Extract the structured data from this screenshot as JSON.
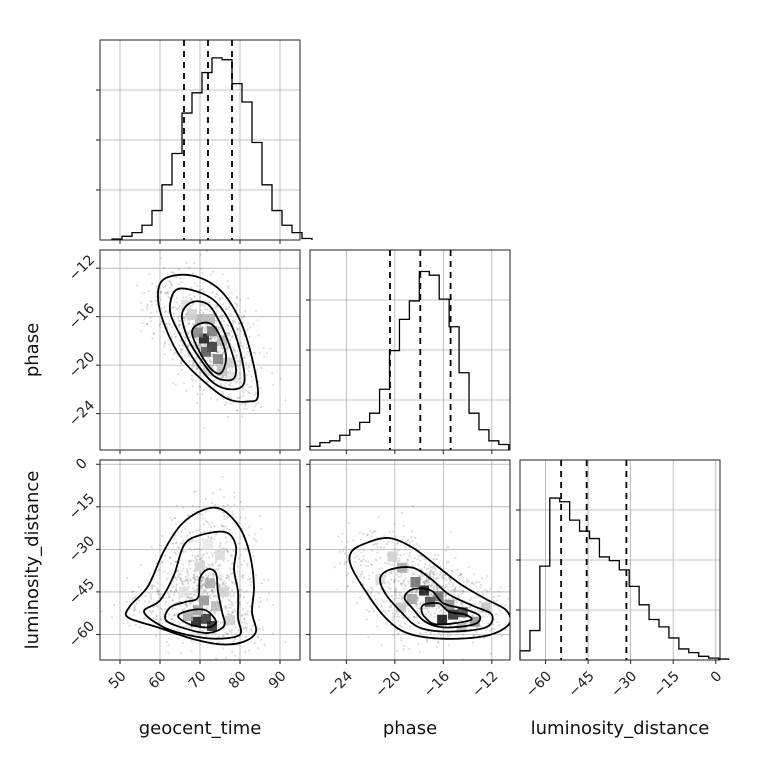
{
  "chart_data": {
    "type": "corner",
    "parameters": [
      "geocent_time",
      "phase",
      "luminosity_distance"
    ],
    "ranges": {
      "geocent_time": [
        45,
        95
      ],
      "phase": [
        -27,
        -10.5
      ],
      "luminosity_distance": [
        -69,
        1.5
      ]
    },
    "ticks": {
      "geocent_time": [
        50,
        60,
        70,
        80,
        90
      ],
      "phase": [
        -24,
        -20,
        -16,
        -12
      ],
      "luminosity_distance": [
        -60,
        -45,
        -30,
        -15,
        0
      ]
    },
    "tick_labels": {
      "geocent_time": [
        "50",
        "60",
        "70",
        "80",
        "90"
      ],
      "phase": [
        "−24",
        "−20",
        "−16",
        "−12"
      ],
      "luminosity_distance": [
        "−60",
        "−45",
        "−30",
        "−15",
        "0"
      ]
    },
    "grid": true,
    "marginals": {
      "geocent_time": {
        "bin_start": 48,
        "bin_width": 2.5,
        "counts": [
          0.005,
          0.02,
          0.04,
          0.08,
          0.16,
          0.3,
          0.47,
          0.69,
          0.8,
          0.91,
          0.99,
          0.98,
          0.85,
          0.75,
          0.53,
          0.3,
          0.16,
          0.08,
          0.04,
          0.008
        ],
        "quantiles": [
          66,
          72,
          78
        ]
      },
      "phase": {
        "bin_start": -27,
        "bin_width": 0.82,
        "counts": [
          0.02,
          0.04,
          0.05,
          0.08,
          0.11,
          0.15,
          0.2,
          0.33,
          0.54,
          0.71,
          0.81,
          0.97,
          0.95,
          0.82,
          0.67,
          0.42,
          0.2,
          0.11,
          0.05,
          0.03
        ],
        "quantiles": [
          -20.4,
          -17.9,
          -15.4
        ]
      },
      "luminosity_distance": {
        "bin_start": -69,
        "bin_width": 3.5,
        "counts": [
          0.05,
          0.16,
          0.51,
          0.88,
          0.86,
          0.76,
          0.7,
          0.66,
          0.56,
          0.54,
          0.49,
          0.4,
          0.3,
          0.22,
          0.18,
          0.12,
          0.06,
          0.04,
          0.02,
          0.01,
          0.005
        ],
        "quantiles": [
          -54.5,
          -45.5,
          -31.5
        ]
      }
    },
    "pairs": [
      {
        "x": "geocent_time",
        "y": "phase",
        "contours": [
          [
            [
              71,
              -16.5
            ],
            [
              74,
              -17
            ],
            [
              76.5,
              -19.2
            ],
            [
              75,
              -20.7
            ],
            [
              71.5,
              -19.8
            ],
            [
              68,
              -17.3
            ]
          ],
          [
            [
              68,
              -14.8
            ],
            [
              72,
              -15
            ],
            [
              75,
              -16.5
            ],
            [
              77.5,
              -18.5
            ],
            [
              79,
              -20.3
            ],
            [
              78,
              -21.2
            ],
            [
              74,
              -21
            ],
            [
              70.5,
              -19.7
            ],
            [
              67,
              -17.8
            ],
            [
              65.5,
              -15.8
            ]
          ],
          [
            [
              64,
              -13.8
            ],
            [
              69,
              -13.9
            ],
            [
              74,
              -14.8
            ],
            [
              78,
              -16.8
            ],
            [
              80.5,
              -19.5
            ],
            [
              81,
              -21.5
            ],
            [
              78,
              -22
            ],
            [
              73.5,
              -21.5
            ],
            [
              69,
              -19.8
            ],
            [
              65,
              -17.5
            ],
            [
              62.5,
              -15.5
            ]
          ],
          [
            [
              61,
              -12.9
            ],
            [
              68,
              -12.6
            ],
            [
              75,
              -13.8
            ],
            [
              80,
              -16.3
            ],
            [
              83,
              -19.4
            ],
            [
              84.5,
              -22.5
            ],
            [
              82,
              -23
            ],
            [
              77,
              -22.8
            ],
            [
              71.5,
              -21.5
            ],
            [
              65.5,
              -19.5
            ],
            [
              61.5,
              -17
            ],
            [
              59.5,
              -14.5
            ]
          ]
        ],
        "density_cells": [
          {
            "x": 71,
            "y": -17.8,
            "level": 0.95
          },
          {
            "x": 73,
            "y": -18.5,
            "level": 0.85
          },
          {
            "x": 71.5,
            "y": -18.9,
            "level": 0.7
          },
          {
            "x": 73,
            "y": -17.2,
            "level": 0.55
          },
          {
            "x": 69.5,
            "y": -17.3,
            "level": 0.5
          },
          {
            "x": 74.5,
            "y": -19.5,
            "level": 0.55
          },
          {
            "x": 70,
            "y": -16.2,
            "level": 0.3
          },
          {
            "x": 72.5,
            "y": -16.2,
            "level": 0.3
          },
          {
            "x": 75.5,
            "y": -18,
            "level": 0.3
          },
          {
            "x": 75.5,
            "y": -20.5,
            "level": 0.25
          },
          {
            "x": 68,
            "y": -15.8,
            "level": 0.2
          },
          {
            "x": 77,
            "y": -19.8,
            "level": 0.2
          },
          {
            "x": 66.5,
            "y": -15,
            "level": 0.12
          },
          {
            "x": 78,
            "y": -21,
            "level": 0.12
          },
          {
            "x": 72,
            "y": -20.5,
            "level": 0.2
          }
        ]
      },
      {
        "x": "geocent_time",
        "y": "luminosity_distance",
        "contours": [
          [
            [
              64.5,
              -53.5
            ],
            [
              67.5,
              -51.5
            ],
            [
              71.5,
              -51.5
            ],
            [
              74,
              -55.5
            ],
            [
              72,
              -57.5
            ],
            [
              67.5,
              -56.5
            ]
          ],
          [
            [
              62.5,
              -50.5
            ],
            [
              66.5,
              -48.5
            ],
            [
              69.5,
              -47
            ],
            [
              70,
              -40
            ],
            [
              72,
              -37
            ],
            [
              74,
              -38.5
            ],
            [
              74.5,
              -45
            ],
            [
              75.5,
              -52
            ],
            [
              76,
              -57
            ],
            [
              72,
              -59.5
            ],
            [
              66.5,
              -58
            ],
            [
              61.5,
              -55
            ]
          ],
          [
            [
              60,
              -48
            ],
            [
              63.5,
              -39
            ],
            [
              66,
              -28.5
            ],
            [
              70,
              -25
            ],
            [
              76.5,
              -24
            ],
            [
              79,
              -29
            ],
            [
              78.5,
              -37
            ],
            [
              79.5,
              -45
            ],
            [
              79.5,
              -54
            ],
            [
              80,
              -60
            ],
            [
              74.5,
              -61.5
            ],
            [
              68,
              -60.5
            ],
            [
              61,
              -57.5
            ],
            [
              56,
              -52
            ]
          ],
          [
            [
              57,
              -43
            ],
            [
              61,
              -30.5
            ],
            [
              65.5,
              -21
            ],
            [
              71,
              -16
            ],
            [
              75.5,
              -16
            ],
            [
              80,
              -22.5
            ],
            [
              82.5,
              -32
            ],
            [
              83.5,
              -43
            ],
            [
              83,
              -52
            ],
            [
              84,
              -59
            ],
            [
              81,
              -62.5
            ],
            [
              75.5,
              -63.5
            ],
            [
              68,
              -61.5
            ],
            [
              59.5,
              -57.5
            ],
            [
              52,
              -54
            ],
            [
              52.5,
              -50
            ]
          ]
        ],
        "density_cells": [
          {
            "x": 69,
            "y": -55.5,
            "level": 0.95
          },
          {
            "x": 71.5,
            "y": -54.5,
            "level": 0.85
          },
          {
            "x": 73,
            "y": -57,
            "level": 0.9
          },
          {
            "x": 71,
            "y": -48,
            "level": 0.45
          },
          {
            "x": 72.5,
            "y": -42,
            "level": 0.35
          },
          {
            "x": 69.5,
            "y": -51.5,
            "level": 0.4
          },
          {
            "x": 67,
            "y": -53.5,
            "level": 0.35
          },
          {
            "x": 74,
            "y": -50,
            "level": 0.3
          },
          {
            "x": 76,
            "y": -45,
            "level": 0.2
          },
          {
            "x": 70,
            "y": -36,
            "level": 0.18
          },
          {
            "x": 75,
            "y": -32,
            "level": 0.15
          },
          {
            "x": 66,
            "y": -45,
            "level": 0.12
          },
          {
            "x": 77.5,
            "y": -55,
            "level": 0.2
          },
          {
            "x": 72,
            "y": -28,
            "level": 0.1
          }
        ]
      },
      {
        "x": "phase",
        "y": "luminosity_distance",
        "contours": [
          [
            [
              -17.6,
              -49.5
            ],
            [
              -16.4,
              -49
            ],
            [
              -15.5,
              -52
            ],
            [
              -14.2,
              -53
            ],
            [
              -13.8,
              -55
            ],
            [
              -16.5,
              -56.5
            ],
            [
              -17.5,
              -54
            ],
            [
              -17.8,
              -51.5
            ]
          ],
          [
            [
              -18.5,
              -44
            ],
            [
              -17,
              -44.5
            ],
            [
              -16,
              -49
            ],
            [
              -14.3,
              -51
            ],
            [
              -13,
              -53.5
            ],
            [
              -13.5,
              -56.5
            ],
            [
              -16,
              -57.5
            ],
            [
              -17.5,
              -55.5
            ],
            [
              -18.5,
              -51
            ],
            [
              -19.2,
              -47
            ]
          ],
          [
            [
              -20.3,
              -37
            ],
            [
              -18.5,
              -36.5
            ],
            [
              -17,
              -40.5
            ],
            [
              -15.5,
              -46
            ],
            [
              -13.5,
              -50
            ],
            [
              -12,
              -53
            ],
            [
              -12.5,
              -57.5
            ],
            [
              -15.5,
              -59
            ],
            [
              -18,
              -57.5
            ],
            [
              -19.5,
              -52
            ],
            [
              -20.8,
              -45.5
            ],
            [
              -21.2,
              -40
            ]
          ],
          [
            [
              -22.5,
              -28
            ],
            [
              -20.5,
              -26
            ],
            [
              -18.5,
              -29.5
            ],
            [
              -16.5,
              -36
            ],
            [
              -14.5,
              -42.5
            ],
            [
              -12.5,
              -47.5
            ],
            [
              -10.8,
              -51.5
            ],
            [
              -10.6,
              -56.5
            ],
            [
              -12.5,
              -60.5
            ],
            [
              -16,
              -61.5
            ],
            [
              -19,
              -59.5
            ],
            [
              -20.8,
              -54
            ],
            [
              -22.3,
              -45.5
            ],
            [
              -23.6,
              -36
            ],
            [
              -23.6,
              -31
            ]
          ]
        ],
        "density_cells": [
          {
            "x": -17.6,
            "y": -44.5,
            "level": 0.95
          },
          {
            "x": -15.2,
            "y": -53,
            "level": 0.9
          },
          {
            "x": -16.1,
            "y": -54.8,
            "level": 1.0
          },
          {
            "x": -14.4,
            "y": -52.2,
            "level": 0.8
          },
          {
            "x": -17.1,
            "y": -48.5,
            "level": 0.75
          },
          {
            "x": -18.3,
            "y": -41.5,
            "level": 0.6
          },
          {
            "x": -16.4,
            "y": -46.5,
            "level": 0.6
          },
          {
            "x": -19.4,
            "y": -36.5,
            "level": 0.35
          },
          {
            "x": -18.6,
            "y": -47.5,
            "level": 0.4
          },
          {
            "x": -13.4,
            "y": -55.5,
            "level": 0.45
          },
          {
            "x": -20.2,
            "y": -32.5,
            "level": 0.2
          },
          {
            "x": -15.5,
            "y": -49.5,
            "level": 0.5
          },
          {
            "x": -12.5,
            "y": -50.5,
            "level": 0.25
          },
          {
            "x": -19.5,
            "y": -50.5,
            "level": 0.25
          },
          {
            "x": -21.2,
            "y": -40.5,
            "level": 0.15
          },
          {
            "x": -14.5,
            "y": -57.5,
            "level": 0.3
          }
        ]
      }
    ]
  }
}
